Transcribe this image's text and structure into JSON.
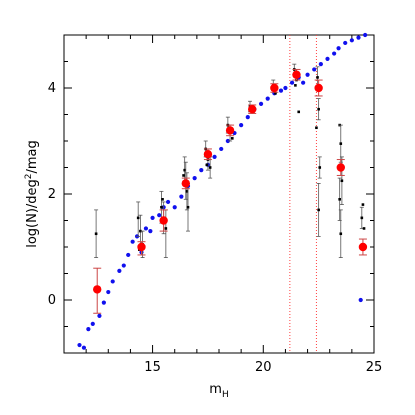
{
  "chart_data": {
    "type": "scatter",
    "title": "",
    "xlabel_main": "m",
    "xlabel_sub": "H",
    "ylabel_text": "log(N)/deg",
    "ylabel_sup": "2",
    "ylabel_tail": "/mag",
    "xlim": [
      11,
      25
    ],
    "ylim": [
      -1,
      5
    ],
    "x_ticks": [
      15,
      20,
      25
    ],
    "y_ticks": [
      0,
      2,
      4
    ],
    "grid": false,
    "vertical_lines_x": [
      21.2,
      22.4
    ],
    "series": [
      {
        "style": "blue-dots",
        "points": [
          [
            11.7,
            -0.85
          ],
          [
            11.9,
            -0.9
          ],
          [
            12.1,
            -0.55
          ],
          [
            12.3,
            -0.45
          ],
          [
            12.6,
            -0.3
          ],
          [
            12.8,
            -0.05
          ],
          [
            13.0,
            0.15
          ],
          [
            13.2,
            0.35
          ],
          [
            13.5,
            0.55
          ],
          [
            13.7,
            0.65
          ],
          [
            13.9,
            0.85
          ],
          [
            14.1,
            1.1
          ],
          [
            14.3,
            1.2
          ],
          [
            14.5,
            0.9
          ],
          [
            14.7,
            1.35
          ],
          [
            14.9,
            1.3
          ],
          [
            15.0,
            1.55
          ],
          [
            15.3,
            1.6
          ],
          [
            15.5,
            1.75
          ],
          [
            15.7,
            1.85
          ],
          [
            16.0,
            1.75
          ],
          [
            16.3,
            1.95
          ],
          [
            16.6,
            2.15
          ],
          [
            16.9,
            2.3
          ],
          [
            17.2,
            2.45
          ],
          [
            17.5,
            2.55
          ],
          [
            17.8,
            2.7
          ],
          [
            18.1,
            2.85
          ],
          [
            18.4,
            3.0
          ],
          [
            18.7,
            3.15
          ],
          [
            19.0,
            3.3
          ],
          [
            19.3,
            3.45
          ],
          [
            19.6,
            3.6
          ],
          [
            19.9,
            3.7
          ],
          [
            20.2,
            3.8
          ],
          [
            20.5,
            3.9
          ],
          [
            20.8,
            3.95
          ],
          [
            21.0,
            4.0
          ],
          [
            21.3,
            4.1
          ],
          [
            21.6,
            4.2
          ],
          [
            21.8,
            4.1
          ],
          [
            22.0,
            4.25
          ],
          [
            22.3,
            4.35
          ],
          [
            22.6,
            4.45
          ],
          [
            22.9,
            4.55
          ],
          [
            23.2,
            4.65
          ],
          [
            23.4,
            4.75
          ],
          [
            23.7,
            4.85
          ],
          [
            24.0,
            4.9
          ],
          [
            24.3,
            4.95
          ],
          [
            24.6,
            5.0
          ],
          [
            24.4,
            0.0
          ]
        ]
      },
      {
        "style": "red-points",
        "points": [
          {
            "x": 12.5,
            "y": 0.2,
            "lo": -0.25,
            "hi": 0.6
          },
          {
            "x": 14.5,
            "y": 1.0,
            "lo": 0.85,
            "hi": 1.1
          },
          {
            "x": 15.5,
            "y": 1.5,
            "lo": 1.3,
            "hi": 1.7
          },
          {
            "x": 16.5,
            "y": 2.2,
            "lo": 2.1,
            "hi": 2.3
          },
          {
            "x": 17.5,
            "y": 2.75,
            "lo": 2.65,
            "hi": 2.85
          },
          {
            "x": 18.5,
            "y": 3.2,
            "lo": 3.1,
            "hi": 3.3
          },
          {
            "x": 19.5,
            "y": 3.6,
            "lo": 3.52,
            "hi": 3.68
          },
          {
            "x": 20.5,
            "y": 4.0,
            "lo": 3.92,
            "hi": 4.08
          },
          {
            "x": 21.5,
            "y": 4.25,
            "lo": 4.15,
            "hi": 4.35
          },
          {
            "x": 22.5,
            "y": 4.0,
            "lo": 3.85,
            "hi": 4.15
          },
          {
            "x": 23.5,
            "y": 2.5,
            "lo": 2.35,
            "hi": 2.65
          },
          {
            "x": 24.5,
            "y": 1.0,
            "lo": 0.85,
            "hi": 1.15
          }
        ]
      },
      {
        "style": "black-points",
        "points": [
          {
            "x": 12.45,
            "y": 1.25,
            "lo": 0.8,
            "hi": 1.7
          },
          {
            "x": 14.35,
            "y": 1.55,
            "lo": 1.2,
            "hi": 1.85
          },
          {
            "x": 14.45,
            "y": 1.3,
            "lo": 1.0,
            "hi": 1.6
          },
          {
            "x": 14.55,
            "y": 1.05,
            "lo": 0.8,
            "hi": 1.3
          },
          {
            "x": 14.4,
            "y": 0.95,
            "lo": null,
            "hi": null
          },
          {
            "x": 15.4,
            "y": 1.75,
            "lo": 1.45,
            "hi": 2.05
          },
          {
            "x": 15.5,
            "y": 1.55,
            "lo": 1.25,
            "hi": 1.85
          },
          {
            "x": 15.6,
            "y": 1.35,
            "lo": 0.8,
            "hi": 1.7
          },
          {
            "x": 15.45,
            "y": 1.9,
            "lo": null,
            "hi": null
          },
          {
            "x": 16.45,
            "y": 2.45,
            "lo": 2.2,
            "hi": 2.7
          },
          {
            "x": 16.5,
            "y": 2.25,
            "lo": 1.9,
            "hi": 2.6
          },
          {
            "x": 16.55,
            "y": 2.05,
            "lo": 1.7,
            "hi": 2.4
          },
          {
            "x": 16.6,
            "y": 1.75,
            "lo": 1.3,
            "hi": 2.2
          },
          {
            "x": 16.4,
            "y": 2.35,
            "lo": null,
            "hi": null
          },
          {
            "x": 17.4,
            "y": 2.85,
            "lo": 2.7,
            "hi": 3.0
          },
          {
            "x": 17.5,
            "y": 2.65,
            "lo": 2.45,
            "hi": 2.85
          },
          {
            "x": 17.6,
            "y": 2.5,
            "lo": 2.3,
            "hi": 2.7
          },
          {
            "x": 17.45,
            "y": 2.55,
            "lo": null,
            "hi": null
          },
          {
            "x": 18.4,
            "y": 3.3,
            "lo": 3.15,
            "hi": 3.45
          },
          {
            "x": 18.5,
            "y": 3.15,
            "lo": 3.0,
            "hi": 3.3
          },
          {
            "x": 18.6,
            "y": 3.05,
            "lo": null,
            "hi": null
          },
          {
            "x": 19.4,
            "y": 3.65,
            "lo": 3.55,
            "hi": 3.75
          },
          {
            "x": 19.55,
            "y": 3.55,
            "lo": null,
            "hi": null
          },
          {
            "x": 20.45,
            "y": 4.05,
            "lo": 3.95,
            "hi": 4.15
          },
          {
            "x": 20.55,
            "y": 3.9,
            "lo": null,
            "hi": null
          },
          {
            "x": 21.4,
            "y": 4.35,
            "lo": 4.25,
            "hi": 4.45
          },
          {
            "x": 21.5,
            "y": 4.15,
            "lo": null,
            "hi": null
          },
          {
            "x": 21.6,
            "y": 3.55,
            "lo": null,
            "hi": null
          },
          {
            "x": 21.45,
            "y": 4.05,
            "lo": null,
            "hi": null
          },
          {
            "x": 22.45,
            "y": 4.2,
            "lo": 4.0,
            "hi": 4.4
          },
          {
            "x": 22.5,
            "y": 3.6,
            "lo": 3.4,
            "hi": 3.8
          },
          {
            "x": 22.55,
            "y": 2.5,
            "lo": 2.3,
            "hi": 2.7
          },
          {
            "x": 22.5,
            "y": 1.7,
            "lo": 1.2,
            "hi": 2.2
          },
          {
            "x": 22.4,
            "y": 3.25,
            "lo": null,
            "hi": null
          },
          {
            "x": 23.45,
            "y": 3.3,
            "lo": null,
            "hi": null
          },
          {
            "x": 23.5,
            "y": 2.95,
            "lo": 2.6,
            "hi": 3.3
          },
          {
            "x": 23.55,
            "y": 2.25,
            "lo": 1.8,
            "hi": 2.7
          },
          {
            "x": 23.45,
            "y": 1.9,
            "lo": 1.5,
            "hi": 2.3
          },
          {
            "x": 23.5,
            "y": 1.25,
            "lo": 0.8,
            "hi": 1.7
          },
          {
            "x": 24.45,
            "y": 1.55,
            "lo": 1.35,
            "hi": 1.75
          },
          {
            "x": 24.55,
            "y": 1.35,
            "lo": null,
            "hi": null
          },
          {
            "x": 24.5,
            "y": 1.8,
            "lo": null,
            "hi": null
          }
        ]
      }
    ]
  },
  "colors": {
    "blue": "#1010ee",
    "red": "#ff0000",
    "black": "#000000",
    "vline": "#ff4040",
    "red_errorbar": "#cc4444",
    "black_errorbar": "#555555"
  }
}
